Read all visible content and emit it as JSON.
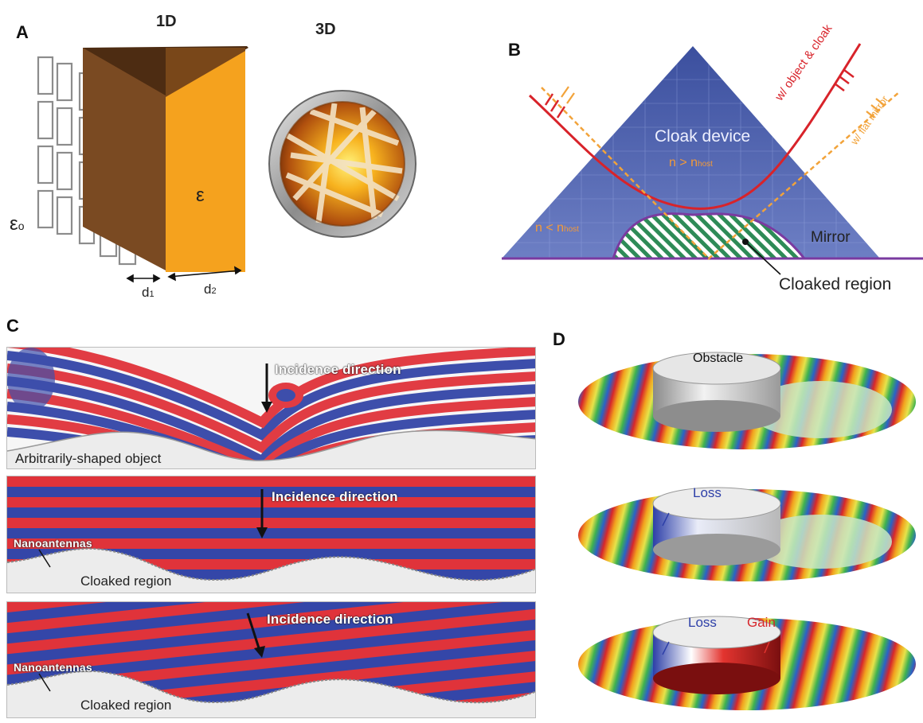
{
  "figure": {
    "panels": {
      "a": {
        "letter": "A",
        "label_1d": "1D",
        "label_3d": "3D",
        "eps0": "ε",
        "eps0_sub": "o",
        "eps": "ε",
        "d1": "d",
        "d1_sub": "1",
        "d2": "d",
        "d2_sub": "2"
      },
      "b": {
        "letter": "B",
        "cloak_device": "Cloak device",
        "n_gt": "n > n",
        "n_lt": "n < n",
        "host_sub": "host",
        "mirror": "Mirror",
        "cloaked_region": "Cloaked region",
        "ray_object_cloak": "w/ object & cloak",
        "ray_flat_mirror": "w/ flat mirror"
      },
      "c": {
        "letter": "C",
        "incidence_1": "Incidence direction",
        "incidence_2": "Incidence direction",
        "incidence_3": "Incidence direction",
        "object_label": "Arbitrarily-shaped object",
        "nano_1": "Nanoantennas",
        "nano_2": "Nanoantennas",
        "cloaked_1": "Cloaked region",
        "cloaked_2": "Cloaked region"
      },
      "d": {
        "letter": "D",
        "obstacle": "Obstacle",
        "loss_1": "Loss",
        "loss_2": "Loss",
        "gain": "Gain"
      }
    },
    "colors": {
      "wave_red": "#e0333a",
      "wave_blue": "#3446a8",
      "cloak_blue": "#4a5fb0",
      "mirror_green": "#2e8b57",
      "ray_red": "#d8232a",
      "ray_orange": "#f2a33a",
      "slab_orange": "#f5a21e",
      "slab_brown": "#7a4a22"
    }
  }
}
